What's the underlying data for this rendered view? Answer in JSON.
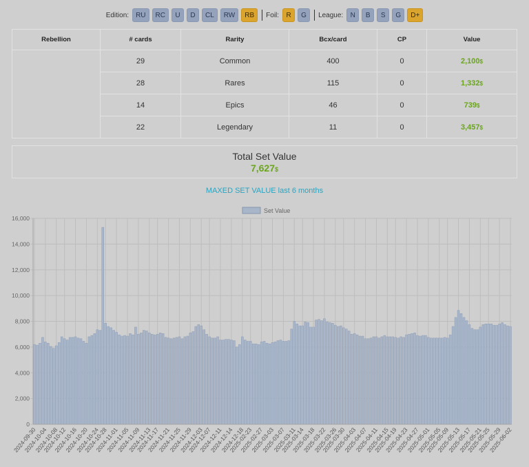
{
  "filters": {
    "edition_label": "Edition:",
    "editions": [
      {
        "label": "RU",
        "active": false
      },
      {
        "label": "RC",
        "active": false
      },
      {
        "label": "U",
        "active": false
      },
      {
        "label": "D",
        "active": false
      },
      {
        "label": "CL",
        "active": false
      },
      {
        "label": "RW",
        "active": false
      },
      {
        "label": "RB",
        "active": true
      }
    ],
    "foil_label": "Foil:",
    "foils": [
      {
        "label": "R",
        "active": true
      },
      {
        "label": "G",
        "active": false
      }
    ],
    "league_label": "League:",
    "leagues": [
      {
        "label": "N",
        "active": false
      },
      {
        "label": "B",
        "active": false
      },
      {
        "label": "S",
        "active": false
      },
      {
        "label": "G",
        "active": false
      },
      {
        "label": "D+",
        "active": true
      }
    ]
  },
  "table": {
    "headers": [
      "Rebellion",
      "# cards",
      "Rarity",
      "Bcx/card",
      "CP",
      "Value"
    ],
    "rows": [
      {
        "cards": "29",
        "rarity": "Common",
        "bcx": "400",
        "cp": "0",
        "value": "2,100"
      },
      {
        "cards": "28",
        "rarity": "Rares",
        "bcx": "115",
        "cp": "0",
        "value": "1,332"
      },
      {
        "cards": "14",
        "rarity": "Epics",
        "bcx": "46",
        "cp": "0",
        "value": "739"
      },
      {
        "cards": "22",
        "rarity": "Legendary",
        "bcx": "11",
        "cp": "0",
        "value": "3,457"
      }
    ],
    "currency": "$"
  },
  "total": {
    "label": "Total Set Value",
    "value": "7,627",
    "currency": "$"
  },
  "maxed_title": "MAXED SET VALUE last 6 months",
  "colors": {
    "accent_green": "#6aa51c",
    "accent_blue": "#2aa3c0",
    "active_button": "#dba42d",
    "inactive_button": "#94a3bb",
    "bar_fill": "#a9b6c9"
  },
  "chart_data": {
    "type": "bar",
    "title": "",
    "xlabel": "",
    "ylabel": "",
    "ylim": [
      0,
      16000
    ],
    "y_ticks": [
      "0",
      "2,000",
      "4,000",
      "6,000",
      "8,000",
      "10,000",
      "12,000",
      "14,000",
      "16,000"
    ],
    "legend": {
      "position": "top-center",
      "entries": [
        "Set Value"
      ]
    },
    "grid": true,
    "x_tick_labels": [
      "2024-09-30",
      "2024-10-04",
      "2024-10-08",
      "2024-10-12",
      "2024-10-16",
      "2024-10-20",
      "2024-10-24",
      "2024-10-28",
      "2024-11-01",
      "2024-11-05",
      "2024-11-09",
      "2024-11-13",
      "2024-11-17",
      "2024-11-21",
      "2024-11-25",
      "2024-11-29",
      "2024-12-03",
      "2024-12-07",
      "2024-12-11",
      "2024-12-14",
      "2024-12-18",
      "2025-02-23",
      "2025-02-27",
      "2025-03-03",
      "2025-03-07",
      "2025-03-11",
      "2025-03-14",
      "2025-03-18",
      "2025-03-22",
      "2025-03-26",
      "2025-03-30",
      "2025-04-03",
      "2025-04-07",
      "2025-04-11",
      "2025-04-15",
      "2025-04-19",
      "2025-04-23",
      "2025-04-27",
      "2025-05-01",
      "2025-05-05",
      "2025-05-09",
      "2025-05-13",
      "2025-05-17",
      "2025-05-21",
      "2025-05-25",
      "2025-05-29",
      "2025-06-02"
    ],
    "series": [
      {
        "name": "Set Value",
        "values": [
          6200,
          6150,
          6300,
          6750,
          6400,
          6300,
          6050,
          5900,
          6100,
          6350,
          6800,
          6650,
          6550,
          6750,
          6750,
          6800,
          6700,
          6650,
          6450,
          6300,
          6800,
          6900,
          7050,
          7350,
          7300,
          15300,
          7850,
          7600,
          7500,
          7300,
          7150,
          6950,
          6850,
          6900,
          6850,
          7050,
          6950,
          7550,
          7000,
          7100,
          7300,
          7250,
          7100,
          7000,
          6950,
          7000,
          7100,
          7050,
          6750,
          6700,
          6650,
          6700,
          6750,
          6800,
          6650,
          6800,
          6850,
          7100,
          7200,
          7600,
          7750,
          7650,
          7350,
          7000,
          6800,
          6700,
          6700,
          6800,
          6550,
          6550,
          6600,
          6600,
          6550,
          6500,
          6000,
          6200,
          6800,
          6550,
          6450,
          6450,
          6250,
          6250,
          6200,
          6400,
          6450,
          6300,
          6250,
          6350,
          6400,
          6500,
          6550,
          6450,
          6450,
          6500,
          7400,
          8000,
          7800,
          7650,
          7650,
          7950,
          7900,
          7550,
          7550,
          8100,
          8150,
          8050,
          8200,
          7950,
          7900,
          7850,
          7700,
          7600,
          7650,
          7500,
          7400,
          7250,
          7000,
          7050,
          6950,
          6850,
          6850,
          6650,
          6650,
          6700,
          6800,
          6800,
          6700,
          6800,
          6900,
          6800,
          6800,
          6800,
          6750,
          6700,
          6800,
          6750,
          6950,
          7000,
          7050,
          7100,
          6900,
          6850,
          6900,
          6900,
          6750,
          6700,
          6700,
          6700,
          6700,
          6700,
          6750,
          6700,
          6950,
          7600,
          8300,
          8850,
          8600,
          8300,
          8050,
          7750,
          7450,
          7350,
          7350,
          7550,
          7750,
          7800,
          7800,
          7800,
          7700,
          7700,
          7800,
          7900,
          7750,
          7650,
          7600
        ]
      }
    ]
  }
}
